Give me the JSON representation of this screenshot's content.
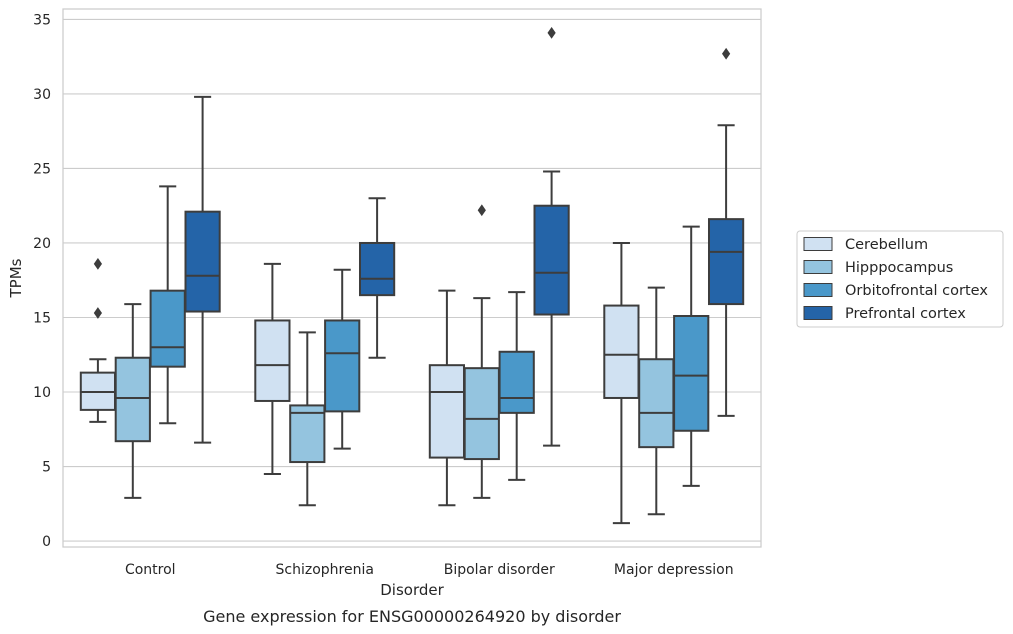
{
  "chart_data": {
    "type": "box",
    "title": "",
    "caption": "Gene expression for ENSG00000264920 by disorder",
    "xlabel": "Disorder",
    "ylabel": "TPMs",
    "ylim": [
      -0.4,
      35.7
    ],
    "yticks": [
      0,
      5,
      10,
      15,
      20,
      25,
      30,
      35
    ],
    "grid": "horizontal",
    "legend_position": "right",
    "categories": [
      "Control",
      "Schizophrenia",
      "Bipolar disorder",
      "Major depression"
    ],
    "series": [
      {
        "name": "Cerebellum",
        "color": "#d0e1f2",
        "boxes": [
          {
            "whisker_low": 8.0,
            "q1": 8.8,
            "median": 10.0,
            "q3": 11.3,
            "whisker_high": 12.2,
            "outliers": [
              15.3,
              18.6
            ]
          },
          {
            "whisker_low": 4.5,
            "q1": 9.4,
            "median": 11.8,
            "q3": 14.8,
            "whisker_high": 18.6,
            "outliers": []
          },
          {
            "whisker_low": 2.4,
            "q1": 5.6,
            "median": 10.0,
            "q3": 11.8,
            "whisker_high": 16.8,
            "outliers": []
          },
          {
            "whisker_low": 1.2,
            "q1": 9.6,
            "median": 12.5,
            "q3": 15.8,
            "whisker_high": 20.0,
            "outliers": []
          }
        ]
      },
      {
        "name": "Hipppocampus",
        "color": "#94c4df",
        "boxes": [
          {
            "whisker_low": 2.9,
            "q1": 6.7,
            "median": 9.6,
            "q3": 12.3,
            "whisker_high": 15.9,
            "outliers": []
          },
          {
            "whisker_low": 2.4,
            "q1": 5.3,
            "median": 8.6,
            "q3": 9.1,
            "whisker_high": 14.0,
            "outliers": []
          },
          {
            "whisker_low": 2.9,
            "q1": 5.5,
            "median": 8.2,
            "q3": 11.6,
            "whisker_high": 16.3,
            "outliers": [
              22.2
            ]
          },
          {
            "whisker_low": 1.8,
            "q1": 6.3,
            "median": 8.6,
            "q3": 12.2,
            "whisker_high": 17.0,
            "outliers": []
          }
        ]
      },
      {
        "name": "Orbitofrontal cortex",
        "color": "#4a98c9",
        "boxes": [
          {
            "whisker_low": 7.9,
            "q1": 11.7,
            "median": 13.0,
            "q3": 16.8,
            "whisker_high": 23.8,
            "outliers": []
          },
          {
            "whisker_low": 6.2,
            "q1": 8.7,
            "median": 12.6,
            "q3": 14.8,
            "whisker_high": 18.2,
            "outliers": []
          },
          {
            "whisker_low": 4.1,
            "q1": 8.6,
            "median": 9.6,
            "q3": 12.7,
            "whisker_high": 16.7,
            "outliers": []
          },
          {
            "whisker_low": 3.7,
            "q1": 7.4,
            "median": 11.1,
            "q3": 15.1,
            "whisker_high": 21.1,
            "outliers": []
          }
        ]
      },
      {
        "name": "Prefrontal cortex",
        "color": "#2464a8",
        "boxes": [
          {
            "whisker_low": 6.6,
            "q1": 15.4,
            "median": 17.8,
            "q3": 22.1,
            "whisker_high": 29.8,
            "outliers": []
          },
          {
            "whisker_low": 12.3,
            "q1": 16.5,
            "median": 17.6,
            "q3": 20.0,
            "whisker_high": 23.0,
            "outliers": []
          },
          {
            "whisker_low": 6.4,
            "q1": 15.2,
            "median": 18.0,
            "q3": 22.5,
            "whisker_high": 24.8,
            "outliers": [
              34.1
            ]
          },
          {
            "whisker_low": 8.4,
            "q1": 15.9,
            "median": 19.4,
            "q3": 21.6,
            "whisker_high": 27.9,
            "outliers": [
              32.7
            ]
          }
        ]
      }
    ]
  }
}
